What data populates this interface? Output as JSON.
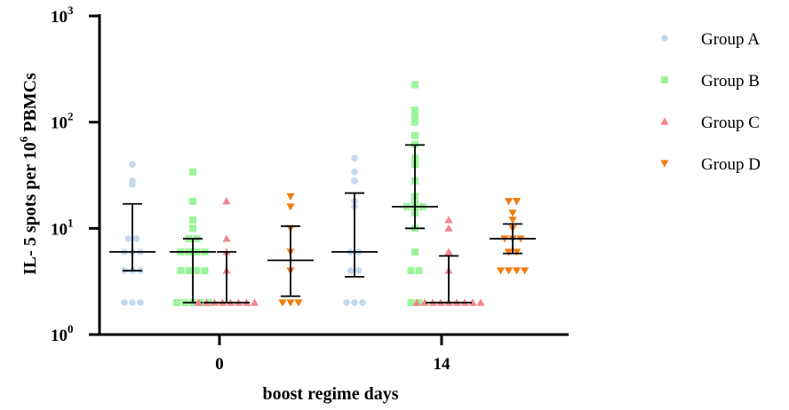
{
  "chart_data": {
    "type": "scatter",
    "ylabel": "IL- 5 spots per 10^6 PBMCs",
    "ylabel_parts": {
      "pre": "IL- 5 spots per 10",
      "sup": "6",
      "post": " PBMCs"
    },
    "xlabel": "boost regime days",
    "y_scale": "log",
    "ylim": [
      1,
      1000
    ],
    "y_ticks": [
      {
        "base": "10",
        "exp": "0"
      },
      {
        "base": "10",
        "exp": "1"
      },
      {
        "base": "10",
        "exp": "2"
      },
      {
        "base": "10",
        "exp": "3"
      }
    ],
    "categories": [
      "0",
      "14"
    ],
    "legend_position": "right",
    "series": [
      {
        "name": "Group A",
        "marker": "circle",
        "color": "#c5d9ee",
        "groups": [
          {
            "day": "0",
            "points": [
              40,
              28,
              26,
              8,
              8,
              6,
              6,
              6,
              4,
              4,
              4,
              2,
              2,
              2
            ],
            "median": 6,
            "upper": 17,
            "lower": 4
          },
          {
            "day": "14",
            "points": [
              46,
              34,
              28,
              18,
              16,
              6,
              6,
              4,
              4,
              2,
              2,
              2
            ],
            "median": 6,
            "upper": 21.5,
            "lower": 3.5
          }
        ]
      },
      {
        "name": "Group B",
        "marker": "square",
        "color": "#9cf59c",
        "groups": [
          {
            "day": "0",
            "points": [
              34,
              18,
              12,
              10,
              8,
              8,
              6,
              6,
              6,
              6,
              4,
              4,
              4,
              4,
              2,
              2,
              2,
              2,
              2
            ],
            "median": 6,
            "upper": 8,
            "lower": 2
          },
          {
            "day": "14",
            "points": [
              225,
              130,
              115,
              100,
              75,
              62,
              46,
              40,
              28,
              20,
              18,
              16,
              16,
              16,
              14,
              10,
              6,
              4,
              4,
              2,
              2
            ],
            "median": 16,
            "upper": 61,
            "lower": 10
          }
        ]
      },
      {
        "name": "Group C",
        "marker": "triangle-up",
        "color": "#f0878b",
        "groups": [
          {
            "day": "0",
            "points": [
              18,
              8,
              6,
              4,
              2,
              2,
              2,
              2,
              2,
              2,
              2,
              2
            ],
            "median": 2,
            "upper": 6,
            "lower": 2
          },
          {
            "day": "14",
            "points": [
              12,
              10,
              6,
              4,
              2,
              2,
              2,
              2,
              2,
              2,
              2,
              2,
              2
            ],
            "median": 2,
            "upper": 5.5,
            "lower": 2
          }
        ]
      },
      {
        "name": "Group D",
        "marker": "triangle-down",
        "color": "#f07d10",
        "groups": [
          {
            "day": "0",
            "points": [
              20,
              16,
              10,
              6,
              4,
              2,
              2,
              2
            ],
            "median": 5,
            "upper": 10.5,
            "lower": 2.3
          },
          {
            "day": "14",
            "points": [
              18,
              18,
              14,
              12,
              10,
              8,
              8,
              8,
              6,
              6,
              4,
              4,
              4,
              4
            ],
            "median": 8,
            "upper": 11,
            "lower": 5.8
          }
        ]
      }
    ]
  }
}
